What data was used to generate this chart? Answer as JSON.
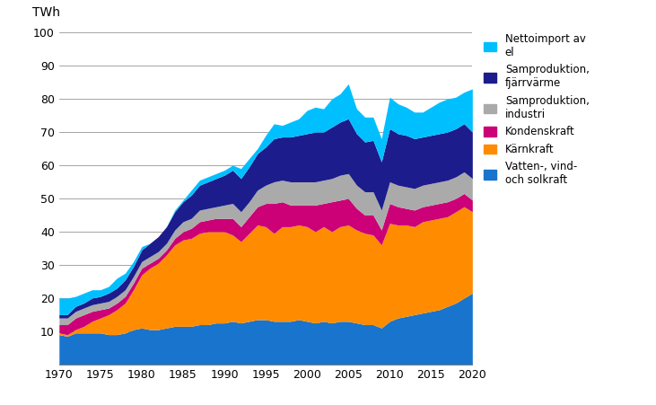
{
  "years": [
    1970,
    1971,
    1972,
    1973,
    1974,
    1975,
    1976,
    1977,
    1978,
    1979,
    1980,
    1981,
    1982,
    1983,
    1984,
    1985,
    1986,
    1987,
    1988,
    1989,
    1990,
    1991,
    1992,
    1993,
    1994,
    1995,
    1996,
    1997,
    1998,
    1999,
    2000,
    2001,
    2002,
    2003,
    2004,
    2005,
    2006,
    2007,
    2008,
    2009,
    2010,
    2011,
    2012,
    2013,
    2014,
    2015,
    2016,
    2017,
    2018,
    2019,
    2020
  ],
  "vatten_vind_sol": [
    9.0,
    8.5,
    9.5,
    9.5,
    9.5,
    9.5,
    9.0,
    9.0,
    9.5,
    10.5,
    11.0,
    10.5,
    10.5,
    11.0,
    11.5,
    11.5,
    11.5,
    12.0,
    12.0,
    12.5,
    12.5,
    13.0,
    12.5,
    13.0,
    13.5,
    13.5,
    13.0,
    13.0,
    13.0,
    13.5,
    13.0,
    12.5,
    13.0,
    12.5,
    13.0,
    13.0,
    12.5,
    12.0,
    12.0,
    11.0,
    13.0,
    14.0,
    14.5,
    15.0,
    15.5,
    16.0,
    16.5,
    17.5,
    18.5,
    20.0,
    21.5
  ],
  "karnkraft": [
    0.5,
    0.5,
    1.0,
    2.0,
    3.5,
    4.5,
    6.0,
    7.5,
    9.0,
    12.0,
    16.0,
    18.5,
    20.0,
    22.0,
    24.5,
    26.0,
    26.5,
    27.5,
    28.0,
    27.5,
    27.5,
    26.0,
    24.5,
    26.5,
    28.5,
    28.0,
    26.5,
    28.5,
    28.5,
    28.5,
    28.5,
    27.5,
    28.5,
    27.5,
    28.5,
    29.0,
    28.0,
    27.5,
    27.0,
    25.0,
    29.5,
    28.0,
    27.5,
    26.5,
    27.5,
    27.5,
    27.5,
    27.0,
    27.5,
    27.5,
    24.5
  ],
  "kondenskraft": [
    2.5,
    3.0,
    3.5,
    3.5,
    3.0,
    2.5,
    2.0,
    2.0,
    2.0,
    2.0,
    2.0,
    1.5,
    1.5,
    1.5,
    2.0,
    2.5,
    3.0,
    3.5,
    3.5,
    4.0,
    4.0,
    5.0,
    4.5,
    5.0,
    5.5,
    7.0,
    9.0,
    7.5,
    6.5,
    6.0,
    6.5,
    8.0,
    7.0,
    9.0,
    8.0,
    8.0,
    6.5,
    5.5,
    6.0,
    4.5,
    6.0,
    5.5,
    5.0,
    5.0,
    4.5,
    4.5,
    4.5,
    4.5,
    4.0,
    4.0,
    3.5
  ],
  "samproduktion_industri": [
    2.0,
    2.0,
    2.0,
    2.0,
    2.0,
    2.0,
    2.0,
    2.0,
    2.0,
    2.0,
    2.0,
    2.0,
    2.0,
    2.0,
    2.5,
    3.0,
    3.0,
    3.5,
    3.5,
    3.5,
    4.0,
    4.5,
    4.5,
    4.5,
    5.0,
    5.5,
    6.5,
    6.5,
    7.0,
    7.0,
    7.0,
    7.0,
    7.0,
    7.0,
    7.5,
    7.5,
    7.0,
    7.0,
    7.0,
    6.0,
    6.5,
    6.5,
    6.5,
    6.5,
    6.5,
    6.5,
    6.5,
    6.5,
    6.5,
    6.5,
    6.5
  ],
  "samproduktion_fjarrvarme": [
    1.0,
    1.0,
    1.5,
    1.5,
    2.0,
    2.0,
    2.5,
    2.5,
    3.0,
    3.0,
    3.5,
    4.0,
    4.5,
    5.0,
    5.5,
    6.0,
    7.0,
    7.5,
    8.0,
    8.5,
    9.0,
    10.0,
    10.0,
    10.5,
    11.0,
    11.5,
    13.0,
    13.0,
    13.5,
    14.0,
    14.5,
    15.0,
    14.5,
    15.5,
    16.0,
    16.5,
    15.5,
    15.0,
    15.5,
    14.5,
    16.0,
    15.5,
    15.5,
    15.0,
    14.5,
    14.5,
    14.5,
    14.5,
    14.5,
    14.5,
    14.0
  ],
  "nettoimport": [
    5.0,
    5.0,
    3.0,
    3.0,
    2.5,
    2.0,
    2.0,
    3.0,
    2.0,
    1.5,
    1.0,
    0.0,
    0.0,
    0.0,
    0.5,
    0.5,
    1.5,
    1.5,
    1.5,
    1.5,
    1.5,
    1.5,
    3.0,
    2.5,
    1.5,
    3.5,
    4.5,
    3.5,
    4.5,
    5.0,
    7.0,
    7.5,
    7.0,
    8.5,
    8.5,
    10.5,
    7.5,
    7.5,
    7.0,
    7.0,
    9.5,
    9.0,
    8.5,
    8.0,
    7.5,
    8.5,
    9.5,
    10.0,
    9.5,
    9.5,
    13.0
  ],
  "colors": {
    "vatten_vind_sol": "#1874CD",
    "karnkraft": "#FF8C00",
    "kondenskraft": "#CC0077",
    "samproduktion_industri": "#AAAAAA",
    "samproduktion_fjarrvarme": "#1C1C8C",
    "nettoimport": "#00BFFF"
  },
  "legend_labels": [
    "Nettoimport av\nel",
    "Samproduktion,\nfjärrvärme",
    "Samproduktion,\nindustri",
    "Kondenskraft",
    "Kärnkraft",
    "Vatten-, vind-\noch solkraft"
  ],
  "ylabel": "TWh",
  "ylim": [
    0,
    100
  ],
  "yticks": [
    0,
    10,
    20,
    30,
    40,
    50,
    60,
    70,
    80,
    90,
    100
  ],
  "xlim": [
    1970,
    2020
  ],
  "xticks": [
    1970,
    1975,
    1980,
    1985,
    1990,
    1995,
    2000,
    2005,
    2010,
    2015,
    2020
  ]
}
